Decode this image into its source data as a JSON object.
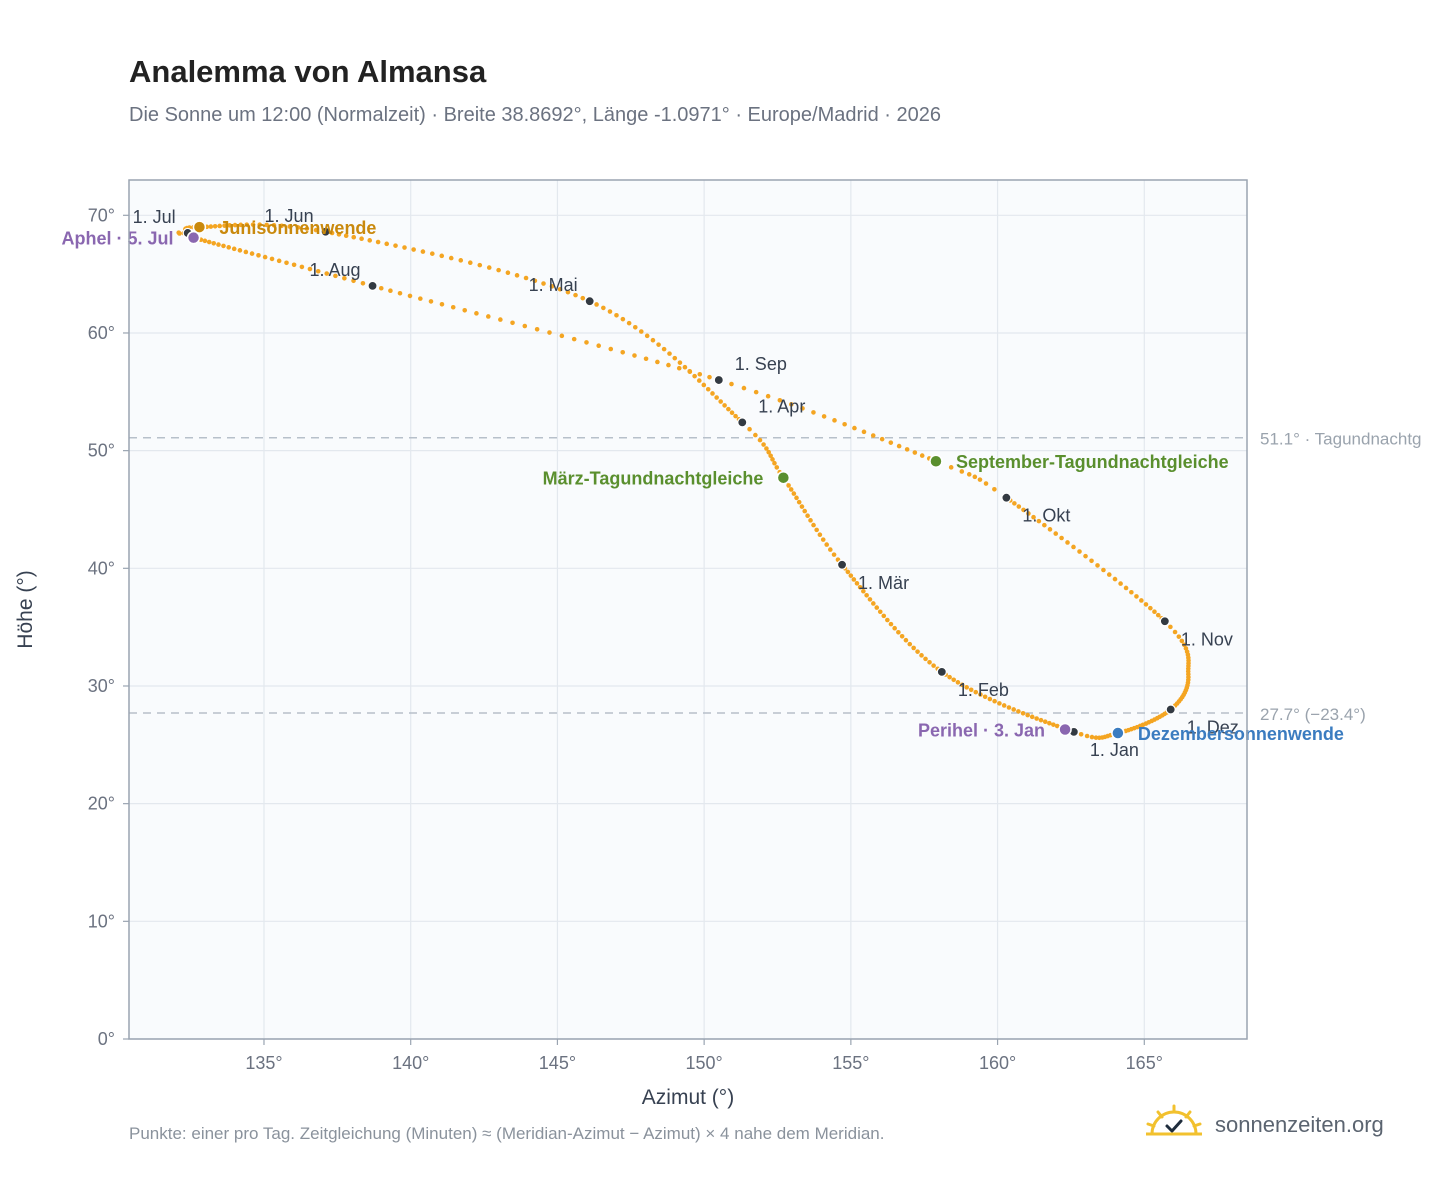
{
  "header": {
    "title": "Analemma von Almansa",
    "subtitle": "Die Sonne um 12:00 (Normalzeit) · Breite 38.8692°, Länge -1.0971° · Europe/Madrid · 2026"
  },
  "footer": {
    "footnote": "Punkte: einer pro Tag. Zeitgleichung (Minuten) ≈ (Meridian-Azimut − Azimut) × 4 nahe dem Meridian.",
    "brand": "sonnenzeiten.org"
  },
  "colors": {
    "path": "#f4a522",
    "month_point": "#333a42",
    "solstice_june": "#c9890d",
    "solstice_december": "#3b7cc0",
    "equinox": "#5a8f2e",
    "apsis": "#8a67b0",
    "reference_line": "#b7c0ca",
    "plot_background": "#f9fbfd",
    "grid": "#e3e8ee"
  },
  "chart_data": {
    "type": "scatter",
    "xlabel": "Azimut (°)",
    "ylabel": "Höhe (°)",
    "xlim": [
      130.4,
      168.5
    ],
    "ylim": [
      0,
      73
    ],
    "xticks": [
      135,
      140,
      145,
      150,
      155,
      160,
      165
    ],
    "yticks": [
      0,
      10,
      20,
      30,
      40,
      50,
      60,
      70
    ],
    "x_tick_labels": [
      "135°",
      "140°",
      "145°",
      "150°",
      "155°",
      "160°",
      "165°"
    ],
    "y_tick_labels": [
      "0°",
      "10°",
      "20°",
      "30°",
      "40°",
      "50°",
      "60°",
      "70°"
    ],
    "grid": true,
    "legend": "none",
    "path_key_points": [
      {
        "doy": 1,
        "az": 162.6,
        "alt": 26.1
      },
      {
        "doy": 32,
        "az": 158.1,
        "alt": 31.2
      },
      {
        "doy": 60,
        "az": 154.7,
        "alt": 40.3
      },
      {
        "doy": 79,
        "az": 152.7,
        "alt": 47.7
      },
      {
        "doy": 91,
        "az": 151.3,
        "alt": 52.4
      },
      {
        "doy": 121,
        "az": 146.1,
        "alt": 62.7
      },
      {
        "doy": 152,
        "az": 137.1,
        "alt": 68.6
      },
      {
        "doy": 172,
        "az": 132.8,
        "alt": 69.0
      },
      {
        "doy": 182,
        "az": 132.4,
        "alt": 68.5
      },
      {
        "doy": 186,
        "az": 132.6,
        "alt": 68.1
      },
      {
        "doy": 213,
        "az": 138.7,
        "alt": 64.0
      },
      {
        "doy": 244,
        "az": 150.5,
        "alt": 56.0
      },
      {
        "doy": 266,
        "az": 157.9,
        "alt": 49.1
      },
      {
        "doy": 274,
        "az": 160.3,
        "alt": 46.0
      },
      {
        "doy": 305,
        "az": 165.7,
        "alt": 35.5
      },
      {
        "doy": 320,
        "az": 166.5,
        "alt": 31.0
      },
      {
        "doy": 335,
        "az": 165.9,
        "alt": 28.0
      },
      {
        "doy": 355,
        "az": 164.1,
        "alt": 26.0
      },
      {
        "doy": 366,
        "az": 162.6,
        "alt": 26.1
      }
    ],
    "month_markers": [
      {
        "label": "1. Jan",
        "az": 162.6,
        "alt": 26.1,
        "anchor": "below-right"
      },
      {
        "label": "1. Feb",
        "az": 158.1,
        "alt": 31.2,
        "anchor": "below-right"
      },
      {
        "label": "1. Mär",
        "az": 154.7,
        "alt": 40.3,
        "anchor": "below-right"
      },
      {
        "label": "1. Apr",
        "az": 151.3,
        "alt": 52.4,
        "anchor": "above-right"
      },
      {
        "label": "1. Mai",
        "az": 146.1,
        "alt": 62.7,
        "anchor": "above-left"
      },
      {
        "label": "1. Jun",
        "az": 137.1,
        "alt": 68.6,
        "anchor": "above-left"
      },
      {
        "label": "1. Jul",
        "az": 132.4,
        "alt": 68.5,
        "anchor": "above-left"
      },
      {
        "label": "1. Aug",
        "az": 138.7,
        "alt": 64.0,
        "anchor": "above-left"
      },
      {
        "label": "1. Sep",
        "az": 150.5,
        "alt": 56.0,
        "anchor": "above-right"
      },
      {
        "label": "1. Okt",
        "az": 160.3,
        "alt": 46.0,
        "anchor": "below-right"
      },
      {
        "label": "1. Nov",
        "az": 165.7,
        "alt": 35.5,
        "anchor": "below-right"
      },
      {
        "label": "1. Dez",
        "az": 165.9,
        "alt": 28.0,
        "anchor": "below-right"
      }
    ],
    "special_points": [
      {
        "label": "Junisonnenwende",
        "az": 132.8,
        "alt": 69.0,
        "color": "#c9890d",
        "side": "right"
      },
      {
        "label": "Aphel · 5. Jul",
        "az": 132.6,
        "alt": 68.1,
        "color": "#8a67b0",
        "side": "left"
      },
      {
        "label": "März-Tagundnachtgleiche",
        "az": 152.7,
        "alt": 47.7,
        "color": "#5a8f2e",
        "side": "left"
      },
      {
        "label": "September-Tagundnachtgleiche",
        "az": 157.9,
        "alt": 49.1,
        "color": "#5a8f2e",
        "side": "right"
      },
      {
        "label": "Perihel · 3. Jan",
        "az": 162.3,
        "alt": 26.3,
        "color": "#8a67b0",
        "side": "left"
      },
      {
        "label": "Dezembersonnenwende",
        "az": 164.1,
        "alt": 26.0,
        "color": "#3b7cc0",
        "side": "right"
      }
    ],
    "reference_lines": [
      {
        "alt": 51.1,
        "label": "51.1° · Tagundnachtg"
      },
      {
        "alt": 27.7,
        "label": "27.7° (−23.4°)"
      }
    ]
  }
}
